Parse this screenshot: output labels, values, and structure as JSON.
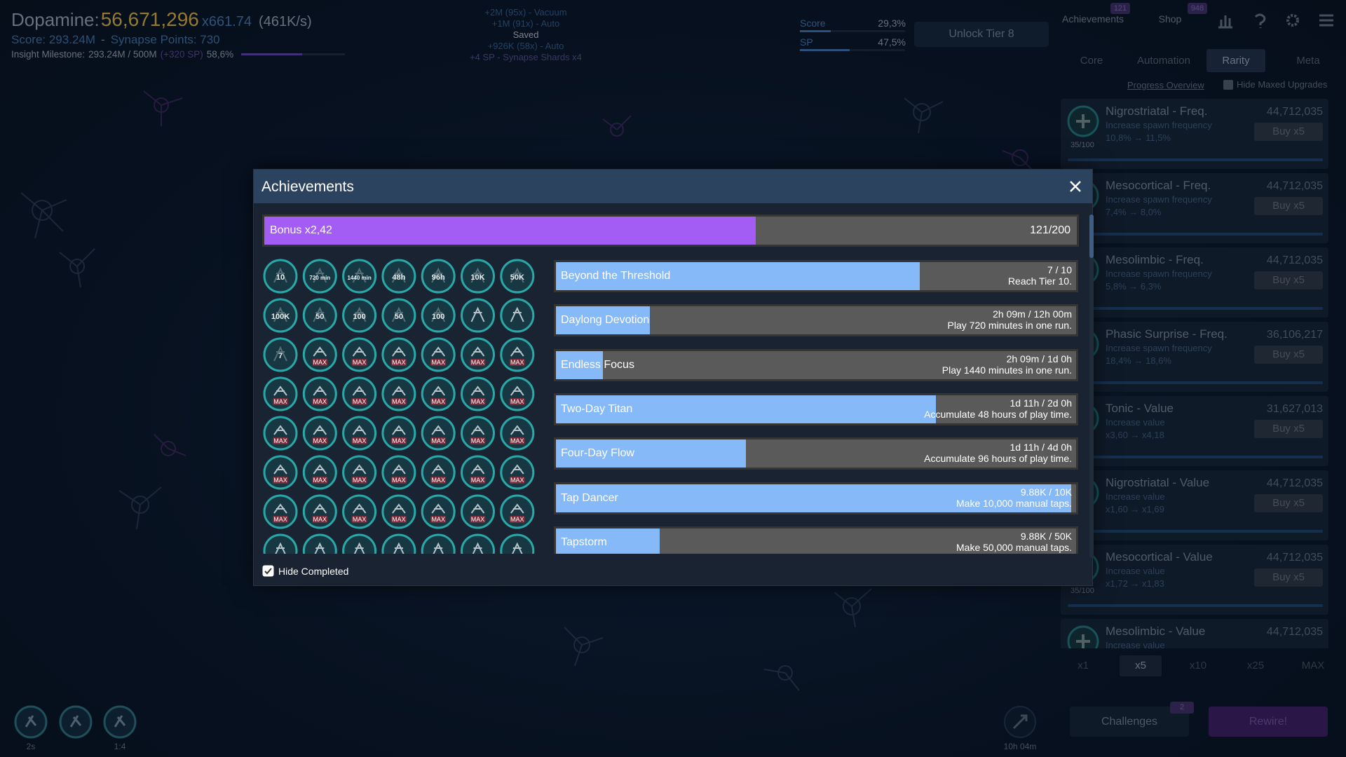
{
  "header": {
    "dopamine_label": "Dopamine:",
    "dopamine": "56,671,296",
    "multiplier": "x661.74",
    "rate": "(461K/s)",
    "score": "Score: 293.24M",
    "separator": "-",
    "synapse_points": "Synapse Points: 730",
    "milestone_label": "Insight Milestone:",
    "milestone_value": "293.24M / 500M",
    "milestone_bonus": "(+320 SP)",
    "milestone_percent": {
      "value": 58.6,
      "label": "58,6%"
    }
  },
  "log": [
    "+2M (95x) - Vacuum",
    "+1M (91x) - Auto",
    "Saved",
    "+926K (58x) - Auto",
    "+4 SP - Synapse Shards x4"
  ],
  "progress": [
    {
      "label": "Score",
      "percent": {
        "value": 29.3,
        "label": "29,3%"
      }
    },
    {
      "label": "SP",
      "percent": {
        "value": 47.5,
        "label": "47,5%"
      }
    }
  ],
  "unlock_button": "Unlock Tier 8",
  "nav": {
    "achievements": "Achievements",
    "achievements_badge": "121",
    "shop": "Shop",
    "shop_badge": "948"
  },
  "tabs": [
    "Core",
    "Automation",
    "Rarity",
    "Meta"
  ],
  "active_tab": 2,
  "progress_overview": "Progress Overview",
  "hide_maxed": "Hide Maxed Upgrades",
  "upgrades": [
    {
      "name": "Nigrostriatal - Freq.",
      "description": "Increase spawn frequency",
      "effect": "10,8% → 11,5%",
      "cost": "44,712,035",
      "button": "Buy x5",
      "level": "35/100"
    },
    {
      "name": "Mesocortical - Freq.",
      "description": "Increase spawn frequency",
      "effect": "7,4% → 8,0%",
      "cost": "44,712,035",
      "button": "Buy x5"
    },
    {
      "name": "Mesolimbic - Freq.",
      "description": "Increase spawn frequency",
      "effect": "5,8% → 6,3%",
      "cost": "44,712,035",
      "button": "Buy x5"
    },
    {
      "name": "Phasic Surprise - Freq.",
      "description": "Increase spawn frequency",
      "effect": "18,4% → 18,6%",
      "cost": "36,106,217",
      "button": "Buy x5"
    },
    {
      "name": "Tonic - Value",
      "description": "Increase value",
      "effect": "x3,60 → x4,18",
      "cost": "31,627,013",
      "button": "Buy x5"
    },
    {
      "name": "Nigrostriatal - Value",
      "description": "Increase value",
      "effect": "x1,60 → x1,69",
      "cost": "44,712,035",
      "button": "Buy x5"
    },
    {
      "name": "Mesocortical - Value",
      "description": "Increase value",
      "effect": "x1,72 → x1,83",
      "cost": "44,712,035",
      "button": "Buy x5",
      "level": "35/100"
    },
    {
      "name": "Mesolimbic - Value",
      "description": "Increase value",
      "cost": "44,712,035"
    }
  ],
  "buy_amounts": [
    "x1",
    "x5",
    "x10",
    "x25",
    "MAX"
  ],
  "active_buy": 1,
  "challenges": "Challenges",
  "challenges_badge": "2",
  "rewire": "Rewire!",
  "bottom_left_labels": [
    "2s",
    null,
    "1:4"
  ],
  "bottom_right_timer": "10h 04m",
  "modal": {
    "title": "Achievements",
    "bonus_label": "Bonus x2,42",
    "bonus_count": {
      "value": 121,
      "max": 200,
      "label": "121/200"
    },
    "icons": [
      "10",
      "720 min",
      "1440 min",
      "48h",
      "96h",
      "10K",
      "50K",
      "100K",
      "50",
      "100",
      "50",
      "100",
      null,
      null,
      "7",
      "MAX",
      "MAX",
      "MAX",
      "MAX",
      "MAX",
      "MAX",
      "MAX",
      "MAX",
      "MAX",
      "MAX",
      "MAX",
      "MAX",
      "MAX",
      "MAX",
      "MAX",
      "MAX",
      "MAX",
      "MAX",
      "MAX",
      "MAX",
      "MAX",
      "MAX",
      "MAX",
      "MAX",
      "MAX",
      "MAX",
      "MAX",
      "MAX",
      "MAX",
      "MAX",
      "MAX",
      "MAX",
      "MAX",
      "MAX",
      null,
      null,
      null,
      null,
      null,
      null,
      null
    ],
    "achievements": [
      {
        "name": "Beyond the Threshold",
        "progress": "7 / 10",
        "description": "Reach Tier 10.",
        "fill": 0.7
      },
      {
        "name": "Daylong Devotion",
        "progress": "2h 09m / 12h 00m",
        "description": "Play 720 minutes in one run.",
        "fill": 0.18
      },
      {
        "name": "Endless Focus",
        "progress": "2h 09m / 1d 0h",
        "description": "Play 1440 minutes in one run.",
        "fill": 0.09
      },
      {
        "name": "Two-Day Titan",
        "progress": "1d 11h / 2d 0h",
        "description": "Accumulate 48 hours of play time.",
        "fill": 0.73
      },
      {
        "name": "Four-Day Flow",
        "progress": "1d 11h / 4d 0h",
        "description": "Accumulate 96 hours of play time.",
        "fill": 0.365
      },
      {
        "name": "Tap Dancer",
        "progress": "9.88K / 10K",
        "description": "Make 10,000 manual taps.",
        "fill": 0.99
      },
      {
        "name": "Tapstorm",
        "progress": "9.88K / 50K",
        "description": "Make 50,000 manual taps.",
        "fill": 0.2
      }
    ],
    "hide_completed": "Hide Completed"
  }
}
